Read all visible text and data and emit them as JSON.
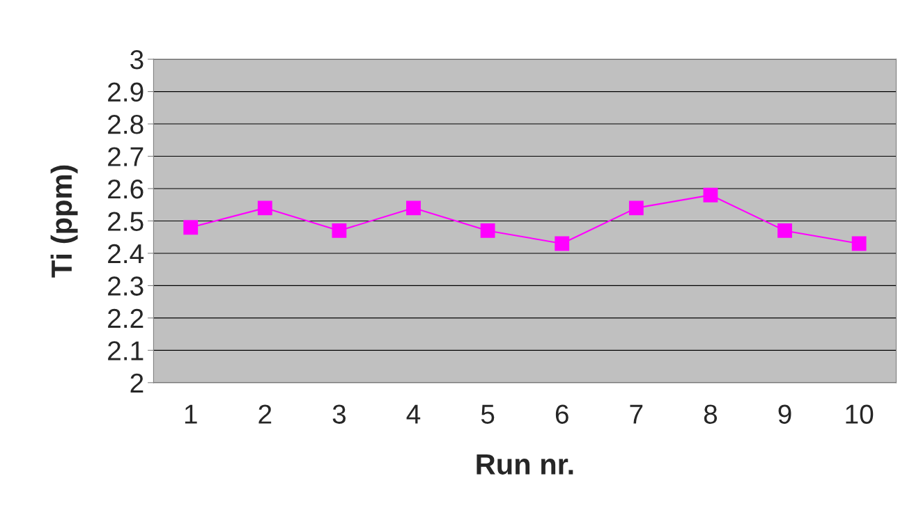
{
  "chart_data": {
    "type": "line",
    "xlabel": "Run nr.",
    "ylabel": "Ti (ppm)",
    "categories": [
      "1",
      "2",
      "3",
      "4",
      "5",
      "6",
      "7",
      "8",
      "9",
      "10"
    ],
    "series": [
      {
        "color": "#ff00ff",
        "values": [
          2.48,
          2.54,
          2.47,
          2.54,
          2.47,
          2.43,
          2.54,
          2.58,
          2.47,
          2.43
        ]
      }
    ],
    "ylim": [
      2,
      3
    ],
    "yticks": [
      2,
      2.1,
      2.2,
      2.3,
      2.4,
      2.5,
      2.6,
      2.7,
      2.8,
      2.9,
      3
    ],
    "grid": "y",
    "marker": "square",
    "line_style": "solid"
  }
}
